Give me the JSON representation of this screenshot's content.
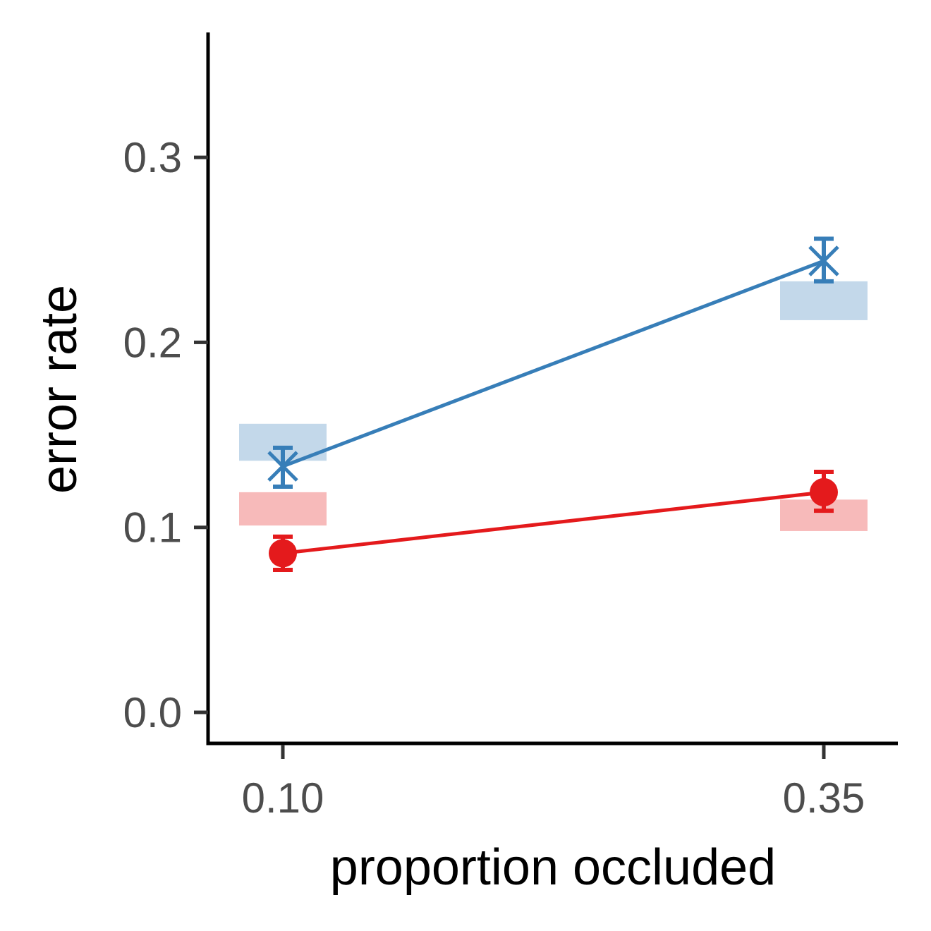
{
  "chart_data": {
    "type": "line",
    "xlabel": "proportion occluded",
    "ylabel": "error rate",
    "x_categories": [
      "0.10",
      "0.35"
    ],
    "ylim": [
      -0.015,
      0.37
    ],
    "y_ticks": [
      0.0,
      0.1,
      0.2,
      0.3
    ],
    "y_tick_labels": [
      "0.0",
      "0.1",
      "0.2",
      "0.3"
    ],
    "grid": false,
    "legend": "none",
    "series": [
      {
        "color": "#377eb8",
        "marker": "x",
        "points": [
          {
            "x": "0.10",
            "y": 0.133,
            "err_low": 0.122,
            "err_high": 0.143,
            "band_low": 0.136,
            "band_high": 0.156
          },
          {
            "x": "0.35",
            "y": 0.244,
            "err_low": 0.233,
            "err_high": 0.256,
            "band_low": 0.212,
            "band_high": 0.233
          }
        ]
      },
      {
        "color": "#e41a1c",
        "marker": "circle",
        "points": [
          {
            "x": "0.10",
            "y": 0.086,
            "err_low": 0.077,
            "err_high": 0.095,
            "band_low": 0.101,
            "band_high": 0.119
          },
          {
            "x": "0.35",
            "y": 0.119,
            "err_low": 0.109,
            "err_high": 0.13,
            "band_low": 0.098,
            "band_high": 0.115
          }
        ]
      }
    ]
  }
}
